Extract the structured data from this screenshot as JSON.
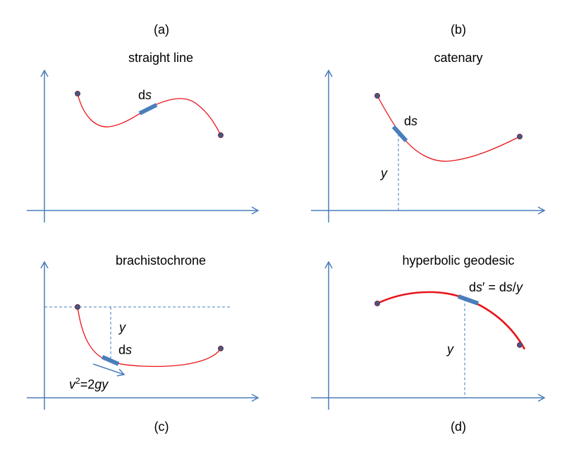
{
  "panels": {
    "a": {
      "tag": "(a)",
      "title": "straight line",
      "ds": "d",
      "ds_it": "s"
    },
    "b": {
      "tag": "(b)",
      "title": "catenary",
      "ds": "d",
      "ds_it": "s",
      "y": "y"
    },
    "c": {
      "tag": "(c)",
      "title": "brachistochrone",
      "ds": "d",
      "ds_it": "s",
      "y": "y",
      "v_it": "v",
      "v_sup": "2",
      "v_eq": "=2",
      "v_gy": "gy"
    },
    "d": {
      "tag": "(d)",
      "title": "hyperbolic geodesic",
      "y": "y",
      "ds_eq": {
        "d1": "d",
        "s1": "s",
        "prime": "′ = d",
        "s2": "s",
        "slash": "/",
        "y": "y"
      }
    }
  },
  "colors": {
    "axis": "#4a7ebb",
    "curve": "#e8141b",
    "dot": "#3f5a8a"
  }
}
